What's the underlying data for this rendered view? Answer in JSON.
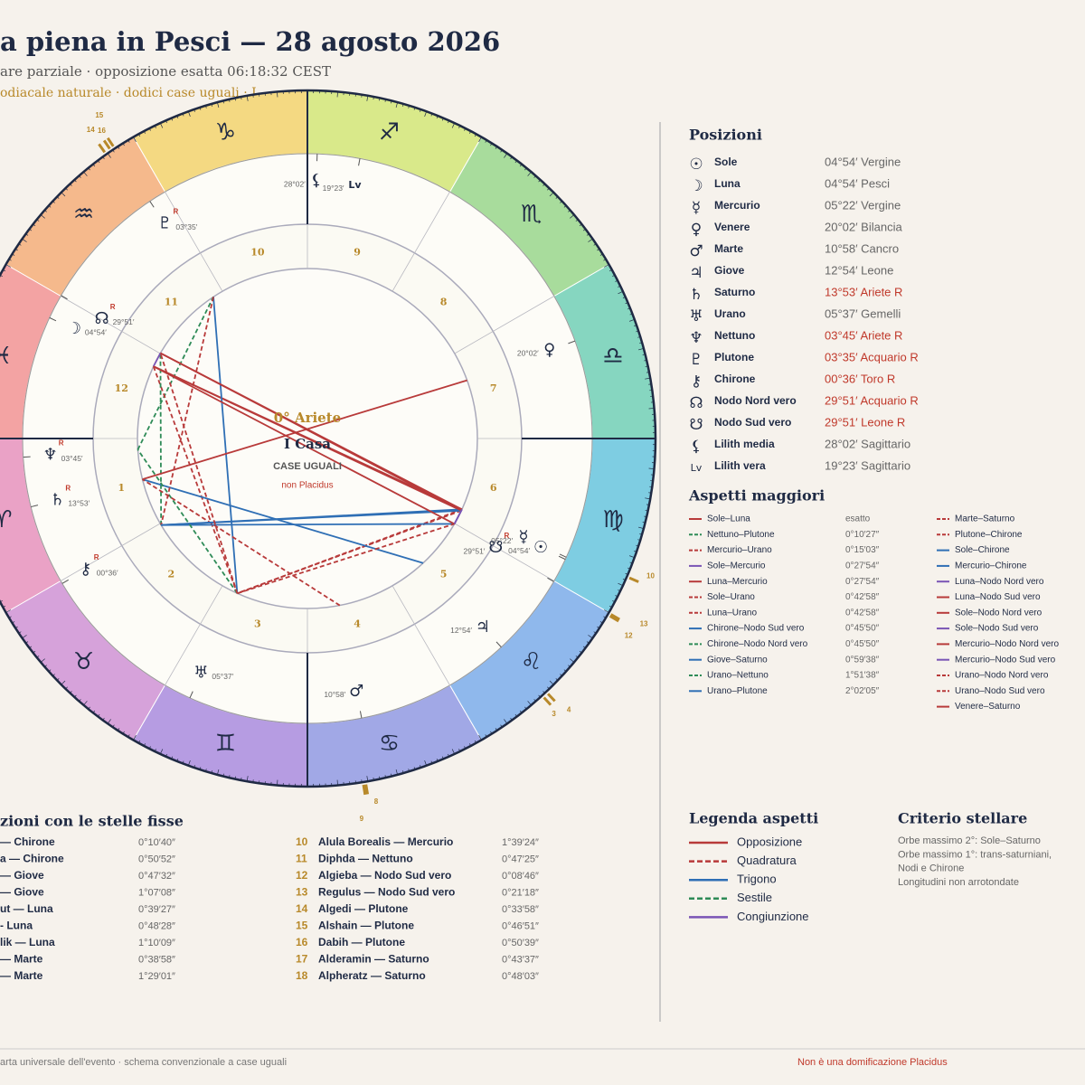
{
  "header": {
    "title": "a piena in Pesci — 28 agosto 2026",
    "subtitle": "are parziale · opposizione esatta 06:18:32 CEST",
    "note": "odiacale naturale · dodici case uguali · I"
  },
  "wheel": {
    "signs": [
      "♈",
      "♉",
      "♊",
      "♋",
      "♌",
      "♍",
      "♎",
      "♏",
      "♐",
      "♑",
      "♒",
      "♓"
    ],
    "sign_colors": [
      "#eaa2c6",
      "#d6a2da",
      "#b69ce2",
      "#a1a8e6",
      "#8fb8ec",
      "#7ecde2",
      "#86d6c0",
      "#a8dc9c",
      "#d9e98a",
      "#f4d982",
      "#f5b98c",
      "#f3a3a3"
    ],
    "houses": [
      1,
      2,
      3,
      4,
      5,
      6,
      7,
      8,
      9,
      10,
      11,
      12
    ],
    "center": {
      "point": "0° Ariete",
      "house": "I Casa",
      "system": "CASE UGUALI",
      "note": "non Placidus"
    },
    "star_marks": [
      {
        "label": 16,
        "longitude": 305.3
      },
      {
        "label": 14,
        "longitude": 303.6
      },
      {
        "label": 15,
        "longitude": 304.3
      },
      {
        "label": 10,
        "longitude": 156.6
      },
      {
        "label": 12,
        "longitude": 149.9
      },
      {
        "label": 13,
        "longitude": 149.6
      },
      {
        "label": 3,
        "longitude": 133.3
      },
      {
        "label": 4,
        "longitude": 132.4
      },
      {
        "label": 9,
        "longitude": 99.6
      },
      {
        "label": 8,
        "longitude": 99.2
      }
    ]
  },
  "positions": {
    "title": "Posizioni",
    "planets": [
      {
        "glyph": "☉",
        "name": "Sole",
        "position": "04°54′ Vergine",
        "wheel_label": "04°54′",
        "longitude": 154.9
      },
      {
        "glyph": "☽",
        "name": "Luna",
        "position": "04°54′ Pesci",
        "wheel_label": "04°54′",
        "longitude": 334.9
      },
      {
        "glyph": "☿",
        "name": "Mercurio",
        "position": "05°22′ Vergine",
        "wheel_label": "05°22′",
        "longitude": 155.37
      },
      {
        "glyph": "♀",
        "name": "Venere",
        "position": "20°02′ Bilancia",
        "wheel_label": "20°02′",
        "longitude": 200.03
      },
      {
        "glyph": "♂",
        "name": "Marte",
        "position": "10°58′ Cancro",
        "wheel_label": "10°58′",
        "longitude": 100.97
      },
      {
        "glyph": "♃",
        "name": "Giove",
        "position": "12°54′ Leone",
        "wheel_label": "12°54′",
        "longitude": 132.9
      },
      {
        "glyph": "♄",
        "name": "Saturno",
        "position": "13°53′ Ariete R",
        "wheel_label": "13°53′",
        "longitude": 13.88,
        "retro": "R"
      },
      {
        "glyph": "♅",
        "name": "Urano",
        "position": "05°37′ Gemelli",
        "wheel_label": "05°37′",
        "longitude": 65.62
      },
      {
        "glyph": "♆",
        "name": "Nettuno",
        "position": "03°45′ Ariete R",
        "wheel_label": "03°45′",
        "longitude": 3.75,
        "retro": "R"
      },
      {
        "glyph": "♇",
        "name": "Plutone",
        "position": "03°35′ Acquario R",
        "wheel_label": "03°35′",
        "longitude": 303.58,
        "retro": "R"
      },
      {
        "glyph": "⚷",
        "name": "Chirone",
        "position": "00°36′ Toro R",
        "wheel_label": "00°36′",
        "longitude": 30.6,
        "retro": "R"
      },
      {
        "glyph": "☊",
        "name": "Nodo Nord vero",
        "position": "29°51′ Acquario R",
        "wheel_label": "29°51′",
        "longitude": 329.85,
        "retro": "R"
      },
      {
        "glyph": "☋",
        "name": "Nodo Sud vero",
        "position": "29°51′ Leone R",
        "wheel_label": "29°51′",
        "longitude": 149.85,
        "retro": "R"
      },
      {
        "glyph": "⚸",
        "name": "Lilith media",
        "position": "28°02′ Sagittario",
        "wheel_label": "28°02′",
        "longitude": 268.03
      },
      {
        "glyph": "Lv",
        "name": "Lilith vera",
        "position": "19°23′ Sagittario",
        "wheel_label": "19°23′",
        "longitude": 259.38
      }
    ]
  },
  "aspects": {
    "title": "Aspetti maggiori",
    "left": [
      {
        "label": "Sole–Luna",
        "orb": "esatto",
        "kind": "Opposizione"
      },
      {
        "label": "Nettuno–Plutone",
        "orb": "0°10′27″",
        "kind": "Sestile"
      },
      {
        "label": "Mercurio–Urano",
        "orb": "0°15′03″",
        "kind": "Quadratura"
      },
      {
        "label": "Sole–Mercurio",
        "orb": "0°27′54″",
        "kind": "Congiunzione"
      },
      {
        "label": "Luna–Mercurio",
        "orb": "0°27′54″",
        "kind": "Opposizione"
      },
      {
        "label": "Sole–Urano",
        "orb": "0°42′58″",
        "kind": "Quadratura"
      },
      {
        "label": "Luna–Urano",
        "orb": "0°42′58″",
        "kind": "Quadratura"
      },
      {
        "label": "Chirone–Nodo Sud vero",
        "orb": "0°45′50″",
        "kind": "Trigono"
      },
      {
        "label": "Chirone–Nodo Nord vero",
        "orb": "0°45′50″",
        "kind": "Sestile"
      },
      {
        "label": "Giove–Saturno",
        "orb": "0°59′38″",
        "kind": "Trigono"
      },
      {
        "label": "Urano–Nettuno",
        "orb": "1°51′38″",
        "kind": "Sestile"
      },
      {
        "label": "Urano–Plutone",
        "orb": "2°02′05″",
        "kind": "Trigono"
      }
    ],
    "right": [
      {
        "label": "Marte–Saturno",
        "kind": "Quadratura"
      },
      {
        "label": "Plutone–Chirone",
        "kind": "Quadratura"
      },
      {
        "label": "Sole–Chirone",
        "kind": "Trigono"
      },
      {
        "label": "Mercurio–Chirone",
        "kind": "Trigono"
      },
      {
        "label": "Luna–Nodo Nord vero",
        "kind": "Congiunzione"
      },
      {
        "label": "Luna–Nodo Sud vero",
        "kind": "Opposizione"
      },
      {
        "label": "Sole–Nodo Nord vero",
        "kind": "Opposizione"
      },
      {
        "label": "Sole–Nodo Sud vero",
        "kind": "Congiunzione"
      },
      {
        "label": "Mercurio–Nodo Nord vero",
        "kind": "Opposizione"
      },
      {
        "label": "Mercurio–Nodo Sud vero",
        "kind": "Congiunzione"
      },
      {
        "label": "Urano–Nodo Nord vero",
        "kind": "Quadratura"
      },
      {
        "label": "Urano–Nodo Sud vero",
        "kind": "Quadratura"
      },
      {
        "label": "Venere–Saturno",
        "kind": "Opposizione"
      }
    ]
  },
  "legend": {
    "title": "Legenda aspetti",
    "items": [
      {
        "label": "Opposizione",
        "color": "#b83a3a",
        "dash": false
      },
      {
        "label": "Quadratura",
        "color": "#b83a3a",
        "dash": true
      },
      {
        "label": "Trigono",
        "color": "#2f6fb5",
        "dash": false
      },
      {
        "label": "Sestile",
        "color": "#2e8b57",
        "dash": true
      },
      {
        "label": "Congiunzione",
        "color": "#7a55b5",
        "dash": false
      }
    ]
  },
  "criteria": {
    "title": "Criterio stellare",
    "lines": [
      "Orbe massimo 2°: Sole–Saturno",
      "Orbe massimo 1°: trans-saturniani,",
      "Nodi e Chirone",
      "Longitudini non arrotondate"
    ]
  },
  "stars": {
    "title": "zioni con le stelle fisse",
    "left": [
      {
        "name": "— Chirone",
        "orb": "0°10′40″"
      },
      {
        "name": "a — Chirone",
        "orb": "0°50′52″"
      },
      {
        "name": "— Giove",
        "orb": "0°47′32″"
      },
      {
        "name": "— Giove",
        "orb": "1°07′08″"
      },
      {
        "name": "ut — Luna",
        "orb": "0°39′27″"
      },
      {
        "name": "- Luna",
        "orb": "0°48′28″"
      },
      {
        "name": "lik — Luna",
        "orb": "1°10′09″"
      },
      {
        "name": "— Marte",
        "orb": "0°38′58″"
      },
      {
        "name": "— Marte",
        "orb": "1°29′01″"
      }
    ],
    "right": [
      {
        "no": 10,
        "name": "Alula Borealis — Mercurio",
        "orb": "1°39′24″"
      },
      {
        "no": 11,
        "name": "Diphda — Nettuno",
        "orb": "0°47′25″"
      },
      {
        "no": 12,
        "name": "Algieba — Nodo Sud vero",
        "orb": "0°08′46″"
      },
      {
        "no": 13,
        "name": "Regulus — Nodo Sud vero",
        "orb": "0°21′18″"
      },
      {
        "no": 14,
        "name": "Algedi — Plutone",
        "orb": "0°33′58″"
      },
      {
        "no": 15,
        "name": "Alshain — Plutone",
        "orb": "0°46′51″"
      },
      {
        "no": 16,
        "name": "Dabih — Plutone",
        "orb": "0°50′39″"
      },
      {
        "no": 17,
        "name": "Alderamin — Saturno",
        "orb": "0°43′37″"
      },
      {
        "no": 18,
        "name": "Alpheratz — Saturno",
        "orb": "0°48′03″"
      }
    ]
  },
  "footer": {
    "left": "arta universale dell'evento · schema convenzionale a case uguali",
    "right": "Non è una domificazione Placidus"
  }
}
